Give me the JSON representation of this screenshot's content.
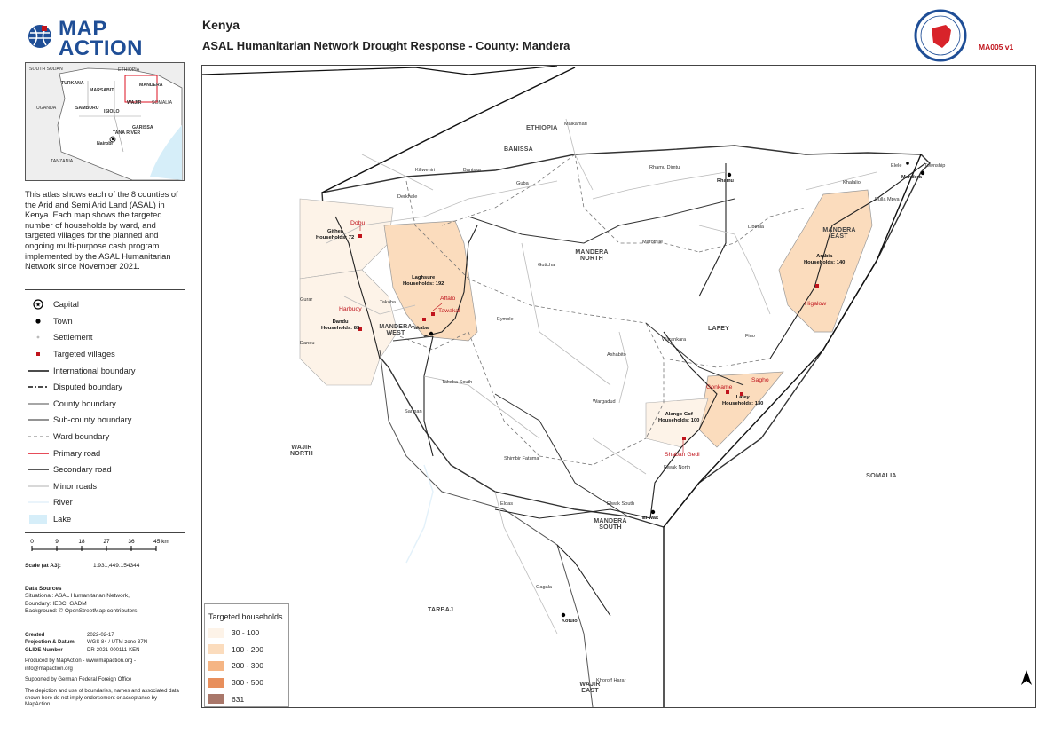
{
  "logo": {
    "line1": "MAP",
    "line2": "ACTION"
  },
  "header": {
    "country": "Kenya",
    "title": "ASAL Humanitarian Network Drought Response - County: Mandera",
    "doc_code": "MA005  v1"
  },
  "inset": {
    "labels": [
      "SOUTH SUDAN",
      "ETHIOPIA",
      "TURKANA",
      "MARSABIT",
      "MANDERA",
      "WAJIR",
      "SOMALIA",
      "UGANDA",
      "SAMBURU",
      "ISIOLO",
      "GARISSA",
      "TANA RIVER",
      "Nairobi",
      "TANZANIA"
    ]
  },
  "intro": "This atlas shows each of the 8 counties of the Arid and Semi Arid Land (ASAL) in Kenya. Each map shows the targeted number of households by ward, and targeted villages for the planned and ongoing multi-purpose cash program implemented by the ASAL Humanitarian Network since November 2021.",
  "legend": [
    {
      "label": "Capital",
      "symbol": "capital"
    },
    {
      "label": "Town",
      "symbol": "town"
    },
    {
      "label": "Settlement",
      "symbol": "settlement"
    },
    {
      "label": "Targeted villages",
      "symbol": "village"
    },
    {
      "label": "International boundary",
      "symbol": "intl"
    },
    {
      "label": "Disputed boundary",
      "symbol": "disputed"
    },
    {
      "label": "County boundary",
      "symbol": "county"
    },
    {
      "label": "Sub-county boundary",
      "symbol": "subcounty"
    },
    {
      "label": "Ward boundary",
      "symbol": "ward"
    },
    {
      "label": "Primary road",
      "symbol": "primary"
    },
    {
      "label": "Secondary road",
      "symbol": "secondary"
    },
    {
      "label": "Minor roads",
      "symbol": "minor"
    },
    {
      "label": "River",
      "symbol": "river"
    },
    {
      "label": "Lake",
      "symbol": "lake"
    }
  ],
  "scale": {
    "ticks": [
      "0",
      "9",
      "18",
      "27",
      "36",
      "45 km"
    ],
    "label": "Scale (at A3):",
    "value": "1:931,449.154344"
  },
  "sources": {
    "title": "Data Sources",
    "lines": [
      "Situational: ASAL Humanitarian Network,",
      "Boundary: IEBC, GADM",
      "Background: © OpenStreetMap contributors"
    ]
  },
  "meta": [
    {
      "k": "Created",
      "v": "2022-02-17"
    },
    {
      "k": "Projection & Datum",
      "v": "WGS 84 / UTM zone 37N"
    },
    {
      "k": "GLIDE Number",
      "v": "DR-2021-000111-KEN"
    }
  ],
  "produced_by": "Produced by MapAction - www.mapaction.org - info@mapaction.org",
  "supported_by": "Supported by German Federal Foreign Office",
  "disclaimer": "The depiction and use of boundaries, names and associated data shown here do not imply endorsement or acceptance by MapAction.",
  "hh_legend": {
    "title": "Targeted households",
    "classes": [
      {
        "label": "30 - 100",
        "color": "#fdf3e8"
      },
      {
        "label": "100 - 200",
        "color": "#fbdcbd"
      },
      {
        "label": "200 - 300",
        "color": "#f5b584"
      },
      {
        "label": "300 - 500",
        "color": "#e88f5c"
      },
      {
        "label": "631",
        "color": "#a9776a"
      }
    ]
  },
  "map_labels": {
    "countries": [
      "ETHIOPIA",
      "SOMALIA"
    ],
    "regions": [
      "BANISSA",
      "MANDERA NORTH",
      "MANDERA EAST",
      "MANDERA WEST",
      "LAFEY",
      "MANDERA SOUTH",
      "WAJIR NORTH",
      "TARBAJ",
      "WAJIR EAST"
    ],
    "towns": [
      "Rhamu",
      "Mandera",
      "Takaba",
      "El Wak",
      "Kotulo",
      "Elele",
      "Township"
    ],
    "settlements": [
      "Malkamari",
      "Kiliwehiri",
      "Banissa",
      "Rhamu Dimtu",
      "Guba",
      "Derkhale",
      "Libehia",
      "Khalalio",
      "Bulla Mpya",
      "Marothile",
      "Guticha",
      "Takaba",
      "Gurar",
      "Dandu",
      "Eymole",
      "Warankara",
      "Ashabito",
      "Fino",
      "Takaba South",
      "Wargadud",
      "Sarman",
      "Shimbir Fatuma",
      "Elwak North",
      "Elwak South",
      "Eldas",
      "Gagala",
      "Khoroff Harar"
    ],
    "villages": [
      "Dobu",
      "Affalo",
      "Tawakal",
      "Harbuoy",
      "Higalow",
      "Gonkame",
      "Sagho",
      "Shaban Gedi"
    ],
    "households": [
      {
        "name": "Gither",
        "text": "Households: 72"
      },
      {
        "name": "Laghsure",
        "text": "Households: 192"
      },
      {
        "name": "Dandu",
        "text": "Households: 83"
      },
      {
        "name": "Arabia",
        "text": "Households: 140"
      },
      {
        "name": "Lafey",
        "text": "Households: 130"
      },
      {
        "name": "Alango Gof",
        "text": "Households: 100"
      }
    ]
  },
  "colors": {
    "village_red": "#c0141c",
    "brand_blue": "#1f4e96",
    "lake": "#d6eef9"
  }
}
